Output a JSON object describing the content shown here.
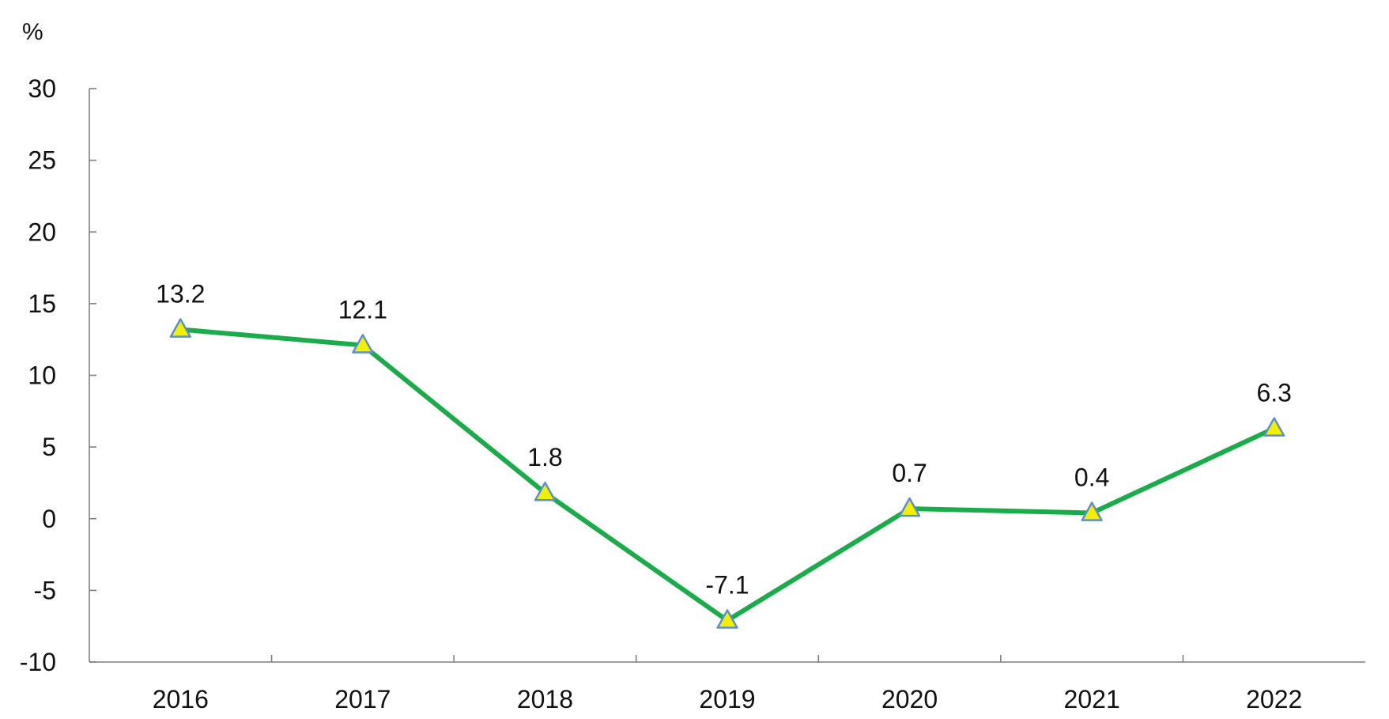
{
  "chart_data": {
    "type": "line",
    "title": "",
    "xlabel": "",
    "ylabel": "%",
    "ylim": [
      -10,
      30
    ],
    "yticks": [
      30,
      25,
      20,
      15,
      10,
      5,
      0,
      -5,
      -10
    ],
    "categories": [
      "2016",
      "2017",
      "2018",
      "2019",
      "2020",
      "2021",
      "2022"
    ],
    "series": [
      {
        "values": [
          13.2,
          12.1,
          1.8,
          -7.1,
          0.7,
          0.4,
          6.3
        ],
        "labels": [
          "13.2",
          "12.1",
          "1.8",
          "-7.1",
          "0.7",
          "0.4",
          "6.3"
        ],
        "color": "#1aab4a",
        "marker": "triangle",
        "marker_fill": "#f2f000",
        "marker_stroke": "#5b8fd0"
      }
    ],
    "grid": false,
    "legend": "none"
  }
}
